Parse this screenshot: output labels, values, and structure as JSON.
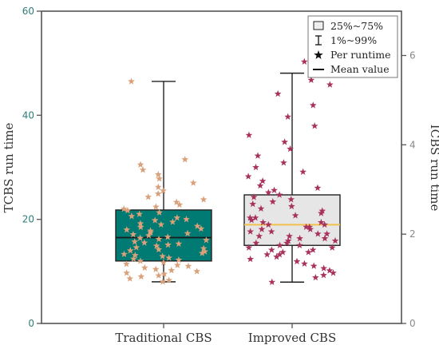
{
  "chart_data": {
    "type": "box",
    "left_axis": {
      "title": "TCBS run time",
      "ylim": [
        0,
        60
      ],
      "ticks": [
        "0",
        "20",
        "40",
        "60"
      ]
    },
    "right_axis": {
      "title": "ICBS run time",
      "ylim": [
        0,
        6.8
      ],
      "ticks": [
        "0",
        "2",
        "4",
        "6"
      ]
    },
    "categories": [
      "Traditional CBS",
      "Improved CBS"
    ],
    "legend": {
      "position": "top-right",
      "items": [
        "25%~75%",
        "1%~99%",
        "Per runtime",
        "Mean value"
      ]
    },
    "series": [
      {
        "category": "Traditional CBS",
        "axis": "left",
        "box_color": "#007b74",
        "point_color": "#d9a07a",
        "q1": 12.0,
        "q3": 21.8,
        "mean": 16.5,
        "whisker_low": 8.0,
        "whisker_high": 46.5,
        "points": [
          8,
          8.3,
          8.6,
          9,
          9.2,
          9.5,
          9.7,
          10,
          10.2,
          10.4,
          10.7,
          11,
          11.2,
          11.4,
          11.7,
          12,
          12.2,
          12.4,
          12.6,
          12.9,
          13.1,
          13.3,
          13.5,
          13.8,
          14,
          14.2,
          14.4,
          14.6,
          14.9,
          15.1,
          15.3,
          15.5,
          15.7,
          16,
          16.2,
          16.4,
          16.6,
          16.9,
          17.1,
          17.3,
          17.5,
          17.8,
          18,
          18.2,
          18.5,
          18.7,
          19,
          19.2,
          19.5,
          19.8,
          20,
          20.3,
          20.6,
          21,
          21.3,
          21.7,
          22,
          22.4,
          22.8,
          23.3,
          23.8,
          24.3,
          24.9,
          25.5,
          26.2,
          27,
          27.8,
          28.6,
          29.5,
          30.5,
          31.5,
          46.5
        ]
      },
      {
        "category": "Improved CBS",
        "axis": "right",
        "box_color": "#e6e6e6",
        "point_color": "#a8325e",
        "mean_color": "#f2c14e",
        "q1": 1.7,
        "q3": 2.8,
        "mean": 2.15,
        "whisker_low": 0.9,
        "whisker_high": 5.45,
        "points": [
          0.9,
          1.0,
          1.05,
          1.1,
          1.15,
          1.2,
          1.25,
          1.3,
          1.35,
          1.4,
          1.45,
          1.5,
          1.5,
          1.55,
          1.55,
          1.6,
          1.6,
          1.65,
          1.65,
          1.7,
          1.7,
          1.75,
          1.75,
          1.8,
          1.8,
          1.85,
          1.85,
          1.9,
          1.9,
          1.95,
          1.95,
          2.0,
          2.0,
          2.05,
          2.05,
          2.1,
          2.1,
          2.15,
          2.15,
          2.2,
          2.2,
          2.25,
          2.3,
          2.3,
          2.35,
          2.4,
          2.45,
          2.5,
          2.55,
          2.6,
          2.65,
          2.7,
          2.75,
          2.8,
          2.85,
          2.9,
          2.95,
          3.0,
          3.1,
          3.2,
          3.3,
          3.4,
          3.5,
          3.65,
          3.8,
          3.95,
          4.1,
          4.3,
          4.5,
          4.75,
          5.0,
          5.2,
          5.3,
          5.7
        ]
      }
    ]
  }
}
